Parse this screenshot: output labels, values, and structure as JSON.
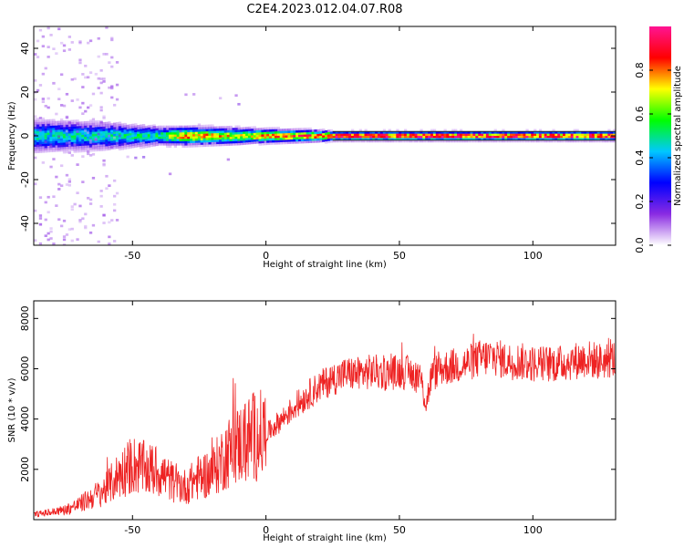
{
  "title": "C2E4.2023.012.04.07.R08",
  "chart_data": [
    {
      "type": "heatmap",
      "xlabel": "Height of straight line (km)",
      "ylabel": "Frequency (Hz)",
      "xlim": [
        -87,
        131
      ],
      "ylim": [
        -50,
        50
      ],
      "xticks": [
        -50,
        0,
        50,
        100
      ],
      "yticks": [
        -40,
        -20,
        0,
        20,
        40
      ],
      "colorbar": {
        "label": "Normalized spectral amplitude",
        "range": [
          0,
          1
        ],
        "ticks": [
          "0.0",
          "0.2",
          "0.4",
          "0.6",
          "0.8"
        ],
        "tick_values": [
          0,
          0.2,
          0.4,
          0.6,
          0.8
        ],
        "colors": [
          "#ffffff",
          "#8a2be2",
          "#0000ff",
          "#00c8ff",
          "#00ff00",
          "#ffff00",
          "#ff0000",
          "#ff1493"
        ]
      },
      "band_profile": [
        {
          "x": -87,
          "half_width_hz": 7,
          "peak_amplitude": 0.5
        },
        {
          "x": -60,
          "half_width_hz": 6,
          "peak_amplitude": 0.5
        },
        {
          "x": -40,
          "half_width_hz": 4,
          "peak_amplitude": 0.55
        },
        {
          "x": -30,
          "half_width_hz": 4,
          "peak_amplitude": 0.85
        },
        {
          "x": -10,
          "half_width_hz": 3.5,
          "peak_amplitude": 0.75
        },
        {
          "x": 0,
          "half_width_hz": 3,
          "peak_amplitude": 0.85
        },
        {
          "x": 20,
          "half_width_hz": 2.5,
          "peak_amplitude": 0.9
        },
        {
          "x": 25,
          "half_width_hz": 2,
          "peak_amplitude": 1.0
        },
        {
          "x": 131,
          "half_width_hz": 2,
          "peak_amplitude": 1.0
        }
      ]
    },
    {
      "type": "line",
      "xlabel": "Height of straight line (km)",
      "ylabel": "SNR (10 * v/v)",
      "xlim": [
        -87,
        131
      ],
      "ylim": [
        0,
        8700
      ],
      "xticks": [
        -50,
        0,
        50,
        100
      ],
      "yticks": [
        2000,
        4000,
        6000,
        8000
      ],
      "color": "#ee2222",
      "series": [
        {
          "x": [
            -87,
            -80,
            -75,
            -70,
            -65,
            -60,
            -55,
            -50,
            -45,
            -40,
            -35,
            -30,
            -25,
            -20,
            -15,
            -10,
            -5,
            0,
            5,
            10,
            15,
            20,
            25,
            30,
            35,
            40,
            45,
            50,
            55,
            58,
            60,
            62,
            65,
            70,
            75,
            80,
            85,
            90,
            95,
            100,
            105,
            110,
            115,
            120,
            125,
            131
          ],
          "values": [
            200,
            300,
            400,
            600,
            900,
            1200,
            1800,
            2200,
            2000,
            1900,
            1500,
            1300,
            1700,
            1900,
            2600,
            3000,
            3300,
            3400,
            3900,
            4400,
            4900,
            5300,
            5600,
            5800,
            5800,
            5900,
            5800,
            5900,
            5800,
            5600,
            4600,
            5700,
            6000,
            6100,
            6200,
            6400,
            6500,
            6300,
            6300,
            6200,
            6200,
            6200,
            6300,
            6400,
            6300,
            6400
          ]
        }
      ]
    }
  ]
}
